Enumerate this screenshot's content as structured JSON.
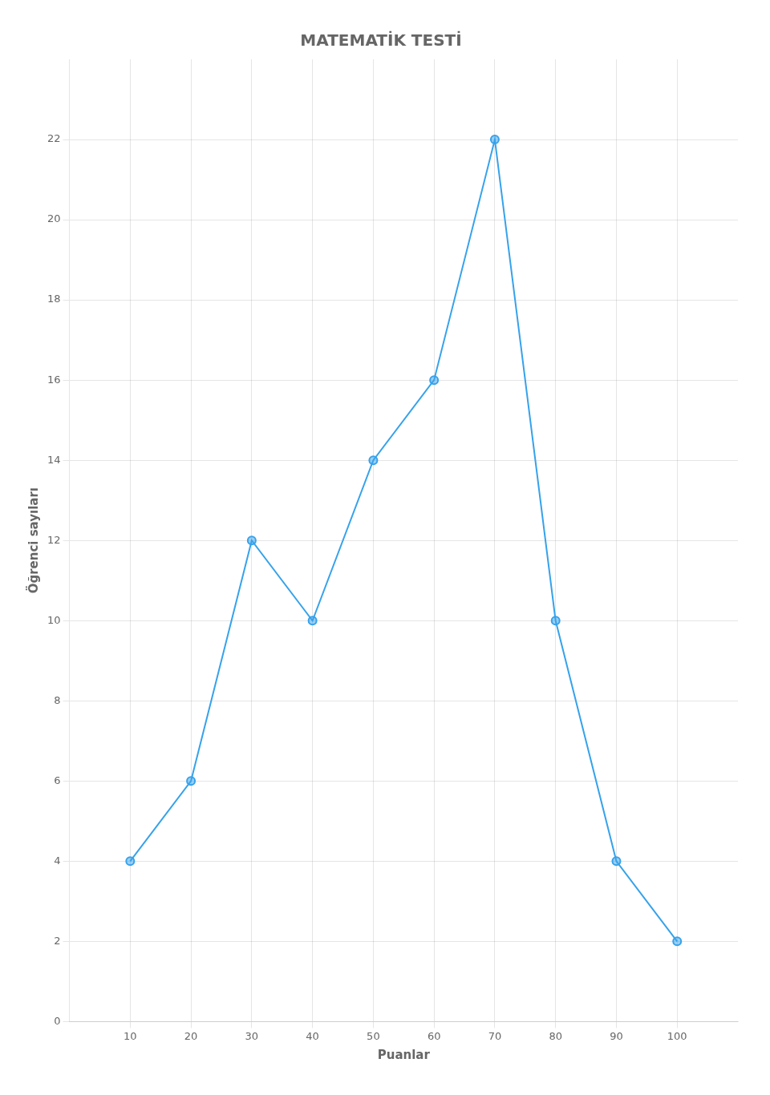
{
  "chart_data": {
    "type": "line",
    "title": "MATEMATİK TESTİ",
    "x": [
      10,
      20,
      30,
      40,
      50,
      60,
      70,
      80,
      90,
      100
    ],
    "values": [
      4,
      6,
      12,
      10,
      14,
      16,
      22,
      10,
      4,
      2
    ],
    "xlabel": "Puanlar",
    "ylabel": "Öğrenci sayıları",
    "xlim": [
      0,
      110
    ],
    "ylim": [
      0,
      24
    ],
    "xticks": [
      10,
      20,
      30,
      40,
      50,
      60,
      70,
      80,
      90,
      100
    ],
    "yticks": [
      0,
      2,
      4,
      6,
      8,
      10,
      12,
      14,
      16,
      18,
      20,
      22
    ],
    "grid": true,
    "marker": "circle"
  }
}
